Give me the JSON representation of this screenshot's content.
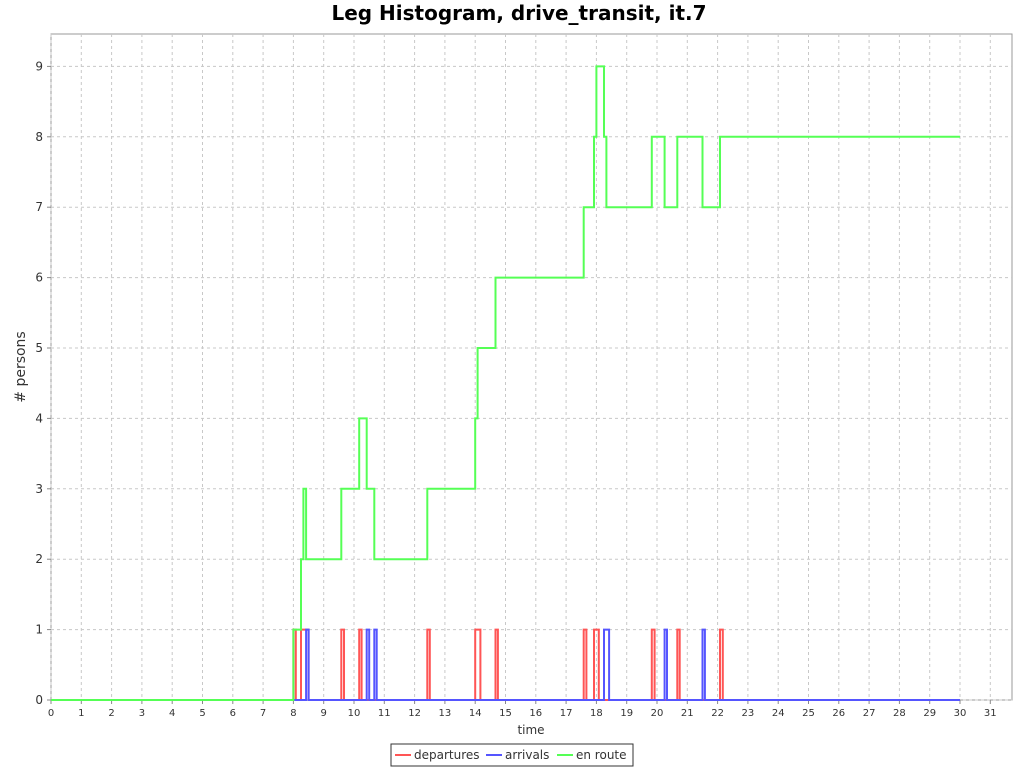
{
  "chart_data": {
    "type": "line",
    "title": "Leg Histogram, drive_transit, it.7",
    "xlabel": "time",
    "ylabel": "# persons",
    "xlim": [
      0,
      31.5
    ],
    "ylim": [
      0,
      9.5
    ],
    "x_ticks": [
      0,
      1,
      2,
      3,
      4,
      5,
      6,
      7,
      8,
      9,
      10,
      11,
      12,
      13,
      14,
      15,
      16,
      17,
      18,
      19,
      20,
      21,
      22,
      23,
      24,
      25,
      26,
      27,
      28,
      29,
      30,
      31
    ],
    "y_ticks": [
      0,
      1,
      2,
      3,
      4,
      5,
      6,
      7,
      8,
      9
    ],
    "grid": true,
    "legend_position": "bottom",
    "series": [
      {
        "name": "departures",
        "color": "#ff5555",
        "step": true,
        "points": [
          [
            0,
            0
          ],
          [
            8.0,
            0
          ],
          [
            8.0,
            1
          ],
          [
            8.08,
            1
          ],
          [
            8.08,
            0
          ],
          [
            8.25,
            0
          ],
          [
            8.25,
            1
          ],
          [
            8.5,
            1
          ],
          [
            8.5,
            0
          ],
          [
            9.58,
            0
          ],
          [
            9.58,
            1
          ],
          [
            9.67,
            1
          ],
          [
            9.67,
            0
          ],
          [
            10.17,
            0
          ],
          [
            10.17,
            1
          ],
          [
            10.25,
            1
          ],
          [
            10.25,
            0
          ],
          [
            12.42,
            0
          ],
          [
            12.42,
            1
          ],
          [
            12.5,
            1
          ],
          [
            12.5,
            0
          ],
          [
            14.0,
            0
          ],
          [
            14.0,
            1
          ],
          [
            14.17,
            1
          ],
          [
            14.17,
            0
          ],
          [
            14.67,
            0
          ],
          [
            14.67,
            1
          ],
          [
            14.75,
            1
          ],
          [
            14.75,
            0
          ],
          [
            17.58,
            0
          ],
          [
            17.58,
            1
          ],
          [
            17.67,
            1
          ],
          [
            17.67,
            0
          ],
          [
            17.92,
            0
          ],
          [
            17.92,
            1
          ],
          [
            18.08,
            1
          ],
          [
            18.08,
            0
          ],
          [
            19.83,
            0
          ],
          [
            19.83,
            1
          ],
          [
            19.92,
            1
          ],
          [
            19.92,
            0
          ],
          [
            20.67,
            0
          ],
          [
            20.67,
            1
          ],
          [
            20.75,
            1
          ],
          [
            20.75,
            0
          ],
          [
            22.08,
            0
          ],
          [
            22.08,
            1
          ],
          [
            22.17,
            1
          ],
          [
            22.17,
            0
          ],
          [
            30.0,
            0
          ]
        ]
      },
      {
        "name": "arrivals",
        "color": "#5555ff",
        "step": true,
        "points": [
          [
            0,
            0
          ],
          [
            8.42,
            0
          ],
          [
            8.42,
            1
          ],
          [
            8.5,
            1
          ],
          [
            8.5,
            0
          ],
          [
            10.42,
            0
          ],
          [
            10.42,
            1
          ],
          [
            10.5,
            1
          ],
          [
            10.5,
            0
          ],
          [
            10.67,
            0
          ],
          [
            10.67,
            1
          ],
          [
            10.75,
            1
          ],
          [
            10.75,
            0
          ],
          [
            18.25,
            0
          ],
          [
            18.25,
            1
          ],
          [
            18.42,
            1
          ],
          [
            18.42,
            0
          ],
          [
            20.25,
            0
          ],
          [
            20.25,
            1
          ],
          [
            20.33,
            1
          ],
          [
            20.33,
            0
          ],
          [
            21.5,
            0
          ],
          [
            21.5,
            1
          ],
          [
            21.58,
            1
          ],
          [
            21.58,
            0
          ],
          [
            30.0,
            0
          ]
        ]
      },
      {
        "name": "en route",
        "color": "#55ff55",
        "step": true,
        "points": [
          [
            0,
            0
          ],
          [
            8.0,
            0
          ],
          [
            8.0,
            1
          ],
          [
            8.25,
            1
          ],
          [
            8.25,
            2
          ],
          [
            8.33,
            2
          ],
          [
            8.33,
            3
          ],
          [
            8.42,
            3
          ],
          [
            8.42,
            2
          ],
          [
            9.58,
            2
          ],
          [
            9.58,
            3
          ],
          [
            10.17,
            3
          ],
          [
            10.17,
            4
          ],
          [
            10.42,
            4
          ],
          [
            10.42,
            3
          ],
          [
            10.67,
            3
          ],
          [
            10.67,
            2
          ],
          [
            12.42,
            2
          ],
          [
            12.42,
            3
          ],
          [
            14.0,
            3
          ],
          [
            14.0,
            4
          ],
          [
            14.08,
            4
          ],
          [
            14.08,
            5
          ],
          [
            14.67,
            5
          ],
          [
            14.67,
            6
          ],
          [
            17.58,
            6
          ],
          [
            17.58,
            7
          ],
          [
            17.92,
            7
          ],
          [
            17.92,
            8
          ],
          [
            18.0,
            8
          ],
          [
            18.0,
            9
          ],
          [
            18.25,
            9
          ],
          [
            18.25,
            8
          ],
          [
            18.33,
            8
          ],
          [
            18.33,
            7
          ],
          [
            19.83,
            7
          ],
          [
            19.83,
            8
          ],
          [
            20.25,
            8
          ],
          [
            20.25,
            7
          ],
          [
            20.67,
            7
          ],
          [
            20.67,
            8
          ],
          [
            21.5,
            8
          ],
          [
            21.5,
            7
          ],
          [
            22.08,
            7
          ],
          [
            22.08,
            8
          ],
          [
            30.0,
            8
          ]
        ]
      }
    ]
  }
}
